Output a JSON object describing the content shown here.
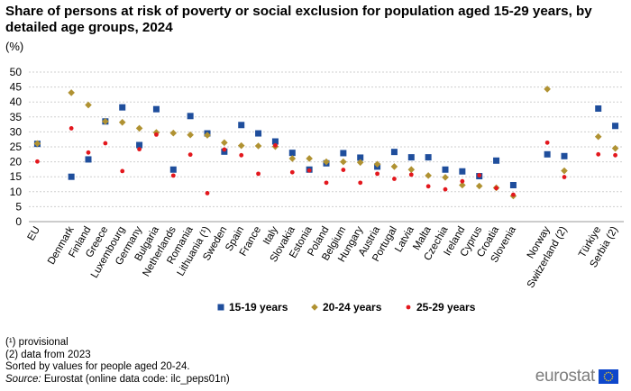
{
  "title": "Share of persons at risk of poverty or social exclusion for population aged 15-29 years, by detailed age groups, 2024",
  "unit": "(%)",
  "notes": [
    "(¹) provisional",
    "(2) data from 2023",
    "Sorted by values for people aged 20-24."
  ],
  "source": {
    "label": "Source:",
    "text": " Eurostat (online data code: ilc_peps01n)"
  },
  "logo": {
    "text": "eurostat",
    "flag_color": "#0e47cb",
    "star_color": "#ffd617"
  },
  "chart_data": {
    "type": "scatter",
    "title": "Share of persons at risk of poverty or social exclusion for population aged 15-29 years, by detailed age groups, 2024",
    "ylabel": "(%)",
    "ylim": [
      0,
      50
    ],
    "yticks": [
      0,
      5,
      10,
      15,
      20,
      25,
      30,
      35,
      40,
      45,
      50
    ],
    "grid": true,
    "legend_position": "bottom-center",
    "categories": [
      "EU",
      "Denmark",
      "Finland",
      "Greece",
      "Luxembourg",
      "Germany",
      "Bulgaria",
      "Netherlands",
      "Romania",
      "Lithuania (¹)",
      "Sweden",
      "Spain",
      "France",
      "Italy",
      "Slovakia",
      "Estonia",
      "Poland",
      "Belgium",
      "Hungary",
      "Austria",
      "Portugal",
      "Latvia",
      "Malta",
      "Czechia",
      "Ireland",
      "Cyprus",
      "Croatia",
      "Slovenia",
      "Norway",
      "Switzerland (2)",
      "Türkiye",
      "Serbia (2)"
    ],
    "groups": [
      [
        0
      ],
      [
        1,
        2,
        3,
        4,
        5,
        6,
        7,
        8,
        9,
        10,
        11,
        12,
        13,
        14,
        15,
        16,
        17,
        18,
        19,
        20,
        21,
        22,
        23,
        24,
        25,
        26,
        27
      ],
      [
        28,
        29
      ],
      [
        30,
        31
      ]
    ],
    "series": [
      {
        "name": "15-19 years",
        "color": "#1f4e9c",
        "marker": "square",
        "values": [
          26.0,
          15.0,
          20.8,
          33.5,
          38.2,
          25.6,
          37.6,
          17.4,
          35.3,
          29.5,
          23.4,
          32.3,
          29.5,
          26.8,
          23.0,
          17.4,
          19.5,
          22.9,
          21.4,
          18.4,
          23.3,
          21.5,
          21.5,
          17.4,
          16.8,
          15.2,
          20.4,
          12.2,
          22.5,
          21.9,
          37.8,
          32.0
        ]
      },
      {
        "name": "20-24 years",
        "color": "#b09232",
        "marker": "diamond",
        "values": [
          26.1,
          43.1,
          39.0,
          33.5,
          33.2,
          31.2,
          29.8,
          29.6,
          29.0,
          28.9,
          26.4,
          25.4,
          25.3,
          25.1,
          21.1,
          21.1,
          20.0,
          20.0,
          19.8,
          19.2,
          18.4,
          17.4,
          15.4,
          14.8,
          12.2,
          11.9,
          11.3,
          8.6,
          44.3,
          17.0,
          28.4,
          24.5
        ]
      },
      {
        "name": "25-29 years",
        "color": "#e3171d",
        "marker": "circle",
        "values": [
          20.1,
          31.2,
          23.1,
          26.2,
          16.9,
          24.2,
          29.1,
          15.4,
          22.4,
          9.5,
          24.1,
          22.2,
          16.0,
          25.5,
          16.5,
          17.1,
          13.0,
          17.3,
          13.0,
          16.0,
          14.3,
          15.7,
          11.8,
          10.8,
          13.5,
          15.5,
          11.2,
          9.0,
          26.4,
          14.9,
          22.5,
          22.2
        ]
      }
    ]
  }
}
